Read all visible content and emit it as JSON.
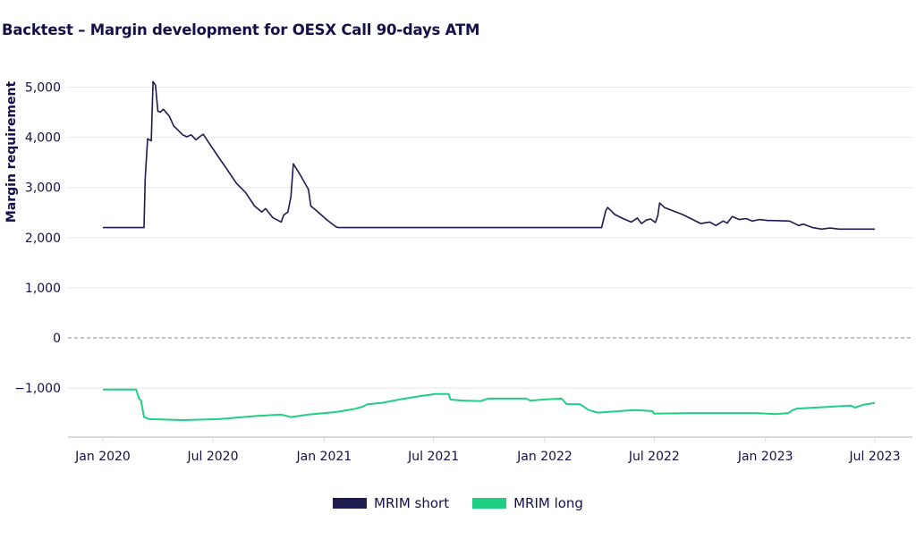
{
  "title": "Backtest – Margin development for OESX Call 90-days ATM",
  "chart_data": {
    "type": "line",
    "title": "Backtest – Margin development for OESX Call 90-days ATM",
    "xlabel": "",
    "ylabel": "Margin requirement",
    "xlim": [
      "2020-01-01",
      "2023-07-10"
    ],
    "ylim": [
      -2000,
      5300
    ],
    "grid": true,
    "zero_line": "dashed",
    "x_ticks": [
      {
        "date": "2020-01-01",
        "label": "Jan 2020"
      },
      {
        "date": "2020-07-01",
        "label": "Jul 2020"
      },
      {
        "date": "2021-01-01",
        "label": "Jan 2021"
      },
      {
        "date": "2021-07-01",
        "label": "Jul 2021"
      },
      {
        "date": "2022-01-01",
        "label": "Jan 2022"
      },
      {
        "date": "2022-07-01",
        "label": "Jul 2022"
      },
      {
        "date": "2023-01-01",
        "label": "Jan 2023"
      },
      {
        "date": "2023-07-01",
        "label": "Jul 2023"
      }
    ],
    "y_ticks": [
      {
        "value": 5000,
        "label": "5,000"
      },
      {
        "value": 4000,
        "label": "4,000"
      },
      {
        "value": 3000,
        "label": "3,000"
      },
      {
        "value": 2000,
        "label": "2,000"
      },
      {
        "value": 1000,
        "label": "1,000"
      },
      {
        "value": 0,
        "label": "0"
      },
      {
        "value": -1000,
        "label": "−1,000"
      }
    ],
    "legend_position": "bottom-center",
    "series": [
      {
        "name": "MRIM short",
        "color": "#1e1b4f",
        "points": [
          [
            "2020-01-01",
            2200
          ],
          [
            "2020-03-09",
            2200
          ],
          [
            "2020-03-11",
            3170
          ],
          [
            "2020-03-15",
            3970
          ],
          [
            "2020-03-21",
            3930
          ],
          [
            "2020-03-24",
            5110
          ],
          [
            "2020-03-28",
            5040
          ],
          [
            "2020-04-01",
            4520
          ],
          [
            "2020-04-05",
            4500
          ],
          [
            "2020-04-10",
            4560
          ],
          [
            "2020-04-20",
            4420
          ],
          [
            "2020-04-27",
            4230
          ],
          [
            "2020-05-12",
            4050
          ],
          [
            "2020-05-19",
            4010
          ],
          [
            "2020-05-26",
            4050
          ],
          [
            "2020-06-03",
            3950
          ],
          [
            "2020-06-10",
            4020
          ],
          [
            "2020-06-15",
            4060
          ],
          [
            "2020-06-25",
            3880
          ],
          [
            "2020-07-10",
            3610
          ],
          [
            "2020-07-25",
            3350
          ],
          [
            "2020-08-09",
            3080
          ],
          [
            "2020-08-24",
            2900
          ],
          [
            "2020-09-08",
            2630
          ],
          [
            "2020-09-20",
            2510
          ],
          [
            "2020-09-26",
            2580
          ],
          [
            "2020-10-08",
            2400
          ],
          [
            "2020-10-22",
            2310
          ],
          [
            "2020-10-26",
            2450
          ],
          [
            "2020-11-02",
            2510
          ],
          [
            "2020-11-07",
            2810
          ],
          [
            "2020-11-11",
            3470
          ],
          [
            "2020-11-22",
            3260
          ],
          [
            "2020-12-06",
            2960
          ],
          [
            "2020-12-10",
            2630
          ],
          [
            "2020-12-21",
            2520
          ],
          [
            "2021-01-05",
            2360
          ],
          [
            "2021-01-20",
            2220
          ],
          [
            "2021-01-24",
            2200
          ],
          [
            "2022-04-05",
            2200
          ],
          [
            "2022-04-12",
            2540
          ],
          [
            "2022-04-15",
            2600
          ],
          [
            "2022-04-27",
            2460
          ],
          [
            "2022-05-12",
            2370
          ],
          [
            "2022-05-24",
            2310
          ],
          [
            "2022-06-03",
            2390
          ],
          [
            "2022-06-10",
            2280
          ],
          [
            "2022-06-18",
            2350
          ],
          [
            "2022-06-25",
            2370
          ],
          [
            "2022-07-03",
            2300
          ],
          [
            "2022-07-07",
            2440
          ],
          [
            "2022-07-10",
            2690
          ],
          [
            "2022-07-18",
            2600
          ],
          [
            "2022-08-02",
            2530
          ],
          [
            "2022-08-17",
            2460
          ],
          [
            "2022-09-01",
            2370
          ],
          [
            "2022-09-16",
            2280
          ],
          [
            "2022-10-01",
            2310
          ],
          [
            "2022-10-11",
            2240
          ],
          [
            "2022-10-23",
            2330
          ],
          [
            "2022-10-30",
            2290
          ],
          [
            "2022-11-07",
            2420
          ],
          [
            "2022-11-19",
            2360
          ],
          [
            "2022-11-30",
            2380
          ],
          [
            "2022-12-10",
            2330
          ],
          [
            "2022-12-22",
            2360
          ],
          [
            "2023-01-05",
            2340
          ],
          [
            "2023-01-12",
            2340
          ],
          [
            "2023-02-10",
            2330
          ],
          [
            "2023-02-25",
            2240
          ],
          [
            "2023-03-05",
            2270
          ],
          [
            "2023-03-20",
            2200
          ],
          [
            "2023-04-04",
            2170
          ],
          [
            "2023-04-18",
            2190
          ],
          [
            "2023-05-03",
            2170
          ],
          [
            "2023-07-01",
            2170
          ]
        ]
      },
      {
        "name": "MRIM long",
        "color": "#1fcf83",
        "points": [
          [
            "2020-01-01",
            -1030
          ],
          [
            "2020-02-25",
            -1030
          ],
          [
            "2020-03-01",
            -1210
          ],
          [
            "2020-03-04",
            -1250
          ],
          [
            "2020-03-09",
            -1580
          ],
          [
            "2020-03-18",
            -1620
          ],
          [
            "2020-05-12",
            -1640
          ],
          [
            "2020-07-10",
            -1620
          ],
          [
            "2020-09-08",
            -1560
          ],
          [
            "2020-10-22",
            -1530
          ],
          [
            "2020-11-07",
            -1580
          ],
          [
            "2020-12-06",
            -1530
          ],
          [
            "2021-01-20",
            -1480
          ],
          [
            "2021-02-19",
            -1420
          ],
          [
            "2021-03-06",
            -1370
          ],
          [
            "2021-03-14",
            -1320
          ],
          [
            "2021-04-05",
            -1300
          ],
          [
            "2021-05-05",
            -1230
          ],
          [
            "2021-06-04",
            -1170
          ],
          [
            "2021-07-04",
            -1120
          ],
          [
            "2021-07-26",
            -1120
          ],
          [
            "2021-07-29",
            -1230
          ],
          [
            "2021-08-18",
            -1250
          ],
          [
            "2021-09-17",
            -1260
          ],
          [
            "2021-09-29",
            -1210
          ],
          [
            "2021-12-01",
            -1210
          ],
          [
            "2021-12-08",
            -1250
          ],
          [
            "2021-12-30",
            -1230
          ],
          [
            "2022-01-29",
            -1210
          ],
          [
            "2022-02-06",
            -1320
          ],
          [
            "2022-02-28",
            -1320
          ],
          [
            "2022-03-15",
            -1440
          ],
          [
            "2022-03-30",
            -1490
          ],
          [
            "2022-05-29",
            -1440
          ],
          [
            "2022-06-28",
            -1460
          ],
          [
            "2022-07-01",
            -1510
          ],
          [
            "2022-08-27",
            -1500
          ],
          [
            "2022-10-26",
            -1500
          ],
          [
            "2022-12-18",
            -1500
          ],
          [
            "2023-01-17",
            -1520
          ],
          [
            "2023-02-08",
            -1500
          ],
          [
            "2023-02-15",
            -1440
          ],
          [
            "2023-02-22",
            -1410
          ],
          [
            "2023-03-24",
            -1390
          ],
          [
            "2023-05-22",
            -1350
          ],
          [
            "2023-05-29",
            -1390
          ],
          [
            "2023-06-13",
            -1330
          ],
          [
            "2023-07-01",
            -1300
          ]
        ]
      }
    ]
  },
  "legend": [
    {
      "label": "MRIM short",
      "color": "#1e1b4f"
    },
    {
      "label": "MRIM long",
      "color": "#1fcf83"
    }
  ]
}
